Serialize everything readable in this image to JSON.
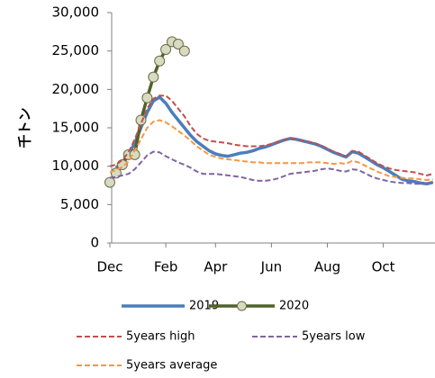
{
  "chart_data": {
    "type": "line",
    "y_label": "千トン",
    "categories": [
      "Dec",
      null,
      null,
      null,
      null,
      null,
      null,
      null,
      null,
      "Feb",
      null,
      null,
      null,
      null,
      null,
      null,
      null,
      "Apr",
      null,
      null,
      null,
      null,
      null,
      null,
      null,
      null,
      "Jun",
      null,
      null,
      null,
      null,
      null,
      null,
      null,
      null,
      "Aug",
      null,
      null,
      null,
      null,
      null,
      null,
      null,
      null,
      "Oct",
      null,
      null,
      null,
      null,
      null,
      null,
      null,
      null
    ],
    "ylim": [
      0,
      30000
    ],
    "yticks": [
      0,
      {
        "value": 5000,
        "label": "5,000"
      },
      {
        "value": 10000,
        "label": "10,000"
      },
      {
        "value": 15000,
        "label": "15,000"
      },
      {
        "value": 20000,
        "label": "20,000"
      },
      {
        "value": 25000,
        "label": "25,000"
      },
      {
        "value": 30000,
        "label": "30,000"
      }
    ],
    "series": [
      {
        "name": "2019",
        "color": "#4a7ebb",
        "style": "solid",
        "values": [
          null,
          9800,
          10500,
          11500,
          13000,
          15000,
          17000,
          18500,
          19000,
          18200,
          17000,
          16000,
          15000,
          14000,
          13200,
          12600,
          12000,
          11600,
          11400,
          11300,
          11500,
          11700,
          11800,
          12000,
          12300,
          12500,
          12800,
          13100,
          13400,
          13600,
          13500,
          13300,
          13100,
          12900,
          12600,
          12200,
          11800,
          11500,
          11200,
          11900,
          11700,
          11200,
          10700,
          10200,
          9800,
          9300,
          8800,
          8300,
          8100,
          8000,
          7800,
          7700,
          7900
        ]
      },
      {
        "name": "2020",
        "color": "#4f6228",
        "style": "solid",
        "marker": "circle",
        "marker_fill": "#d7dbbf",
        "values": [
          7900,
          9100,
          10200,
          11500,
          11500,
          16000,
          18900,
          21600,
          23700,
          25200,
          26200,
          25900,
          25000,
          null,
          null,
          null,
          null,
          null,
          null,
          null,
          null,
          null,
          null,
          null,
          null,
          null,
          null,
          null,
          null,
          null,
          null,
          null,
          null,
          null,
          null,
          null,
          null,
          null,
          null,
          null,
          null,
          null,
          null,
          null,
          null,
          null,
          null,
          null,
          null,
          null,
          null,
          null,
          null
        ]
      },
      {
        "name": "5years high",
        "color": "#c0504d",
        "style": "dashed",
        "values": [
          10000,
          10200,
          10800,
          11800,
          13500,
          15500,
          17500,
          18800,
          19200,
          19200,
          18500,
          17500,
          16500,
          15200,
          14200,
          13600,
          13300,
          13200,
          13100,
          13000,
          12800,
          12700,
          12600,
          12600,
          12600,
          12700,
          12900,
          13200,
          13400,
          13600,
          13500,
          13400,
          13200,
          13000,
          12700,
          12300,
          11900,
          11600,
          11300,
          12000,
          11900,
          11400,
          10900,
          10400,
          10000,
          9700,
          9500,
          9400,
          9300,
          9200,
          9000,
          8800,
          9000
        ]
      },
      {
        "name": "5years low",
        "color": "#8064a2",
        "style": "dashed",
        "values": [
          8500,
          8600,
          8800,
          9000,
          9600,
          10500,
          11400,
          11900,
          11800,
          11300,
          10900,
          10500,
          10200,
          9800,
          9300,
          9000,
          9000,
          9000,
          8900,
          8800,
          8700,
          8600,
          8400,
          8200,
          8100,
          8100,
          8200,
          8400,
          8700,
          9000,
          9100,
          9200,
          9300,
          9400,
          9600,
          9700,
          9600,
          9400,
          9300,
          9600,
          9500,
          9100,
          8700,
          8400,
          8200,
          8000,
          7900,
          7800,
          7800,
          7700,
          7700,
          7800,
          7900
        ]
      },
      {
        "name": "5years average",
        "color": "#f79646",
        "style": "dashed",
        "values": [
          9200,
          9500,
          9900,
          10600,
          12000,
          13500,
          15000,
          15800,
          16000,
          15700,
          15200,
          14600,
          14000,
          13300,
          12600,
          12000,
          11500,
          11200,
          11000,
          10900,
          10800,
          10700,
          10600,
          10500,
          10500,
          10400,
          10400,
          10400,
          10400,
          10400,
          10400,
          10400,
          10500,
          10500,
          10500,
          10400,
          10300,
          10400,
          10300,
          10700,
          10500,
          10100,
          9700,
          9300,
          9000,
          8700,
          8600,
          8500,
          8400,
          8400,
          8300,
          8200,
          8300
        ]
      }
    ]
  }
}
